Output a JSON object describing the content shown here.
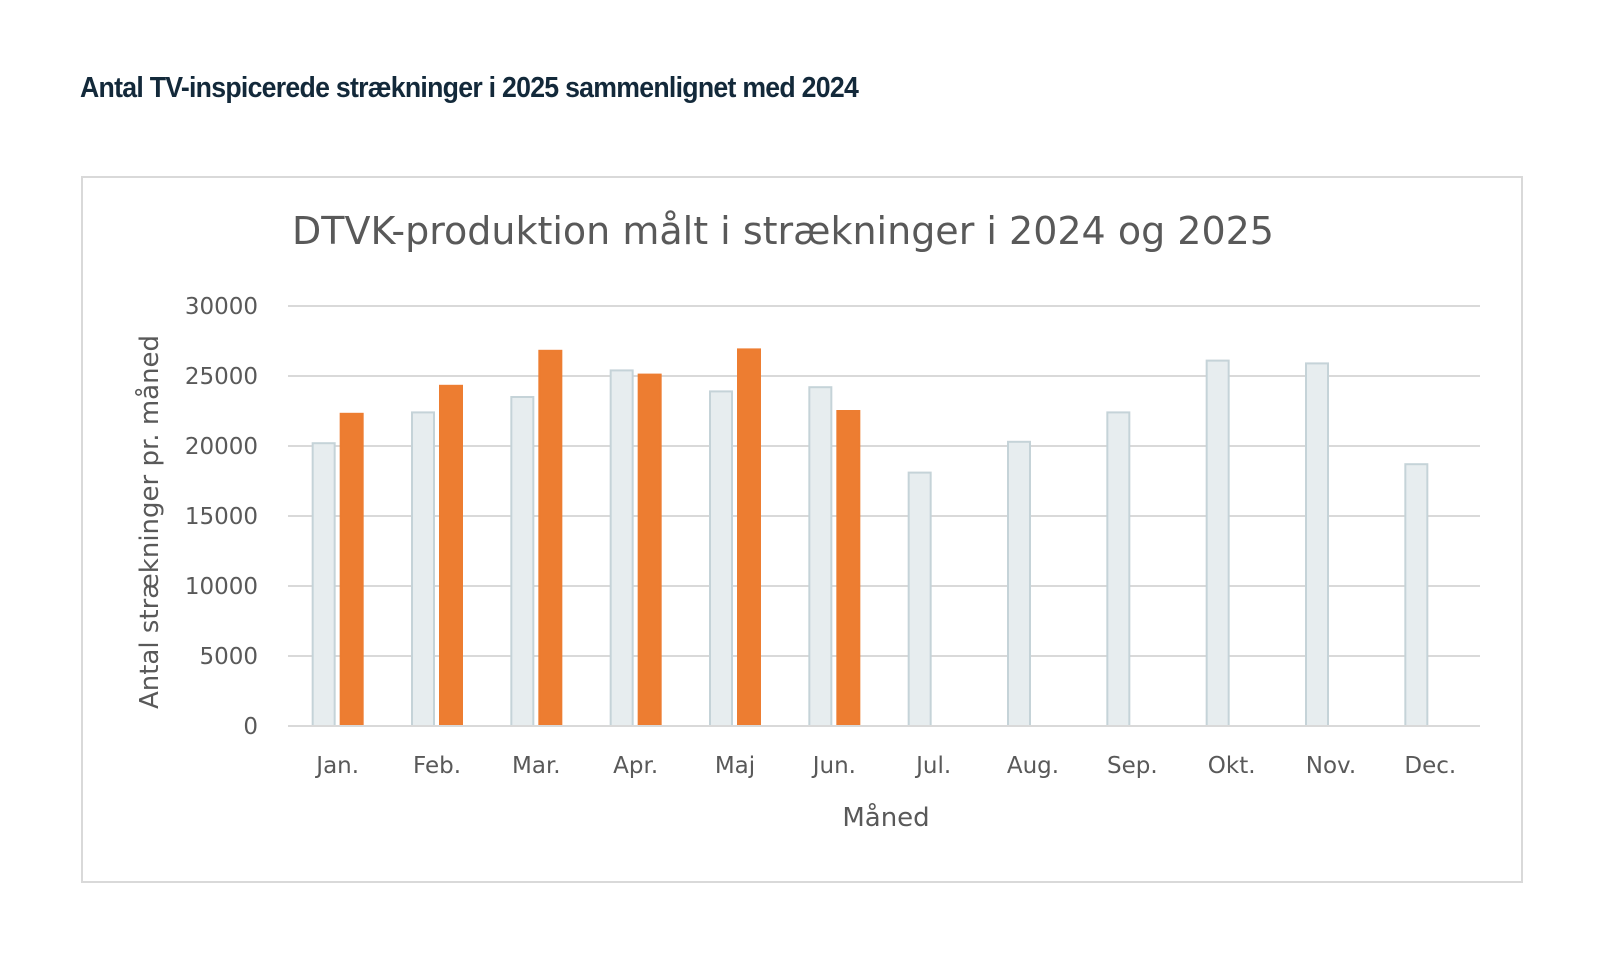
{
  "heading": "Antal TV-inspicerede strækninger i 2025 sammenlignet med 2024",
  "chart_data": {
    "type": "bar",
    "title": "DTVK-produktion målt i strækninger i 2024 og 2025",
    "xlabel": "Måned",
    "ylabel": "Antal strækninger pr. måned",
    "ylim": [
      0,
      30000
    ],
    "yticks": [
      "0",
      "5000",
      "10000",
      "15000",
      "20000",
      "25000",
      "30000"
    ],
    "grid": true,
    "categories": [
      "Jan.",
      "Feb.",
      "Mar.",
      "Apr.",
      "Maj",
      "Jun.",
      "Jul.",
      "Aug.",
      "Sep.",
      "Okt.",
      "Nov.",
      "Dec."
    ],
    "series": [
      {
        "values": [
          20200,
          22400,
          23500,
          25400,
          23900,
          24200,
          18100,
          20300,
          22400,
          26100,
          25900,
          18700
        ],
        "color": "#e7edef",
        "stroke": "#c5d3d8"
      },
      {
        "values": [
          22300,
          24300,
          26800,
          25100,
          26900,
          22500,
          null,
          null,
          null,
          null,
          null,
          null
        ],
        "color": "#ed7d31",
        "stroke": "#ed7d31"
      }
    ]
  }
}
